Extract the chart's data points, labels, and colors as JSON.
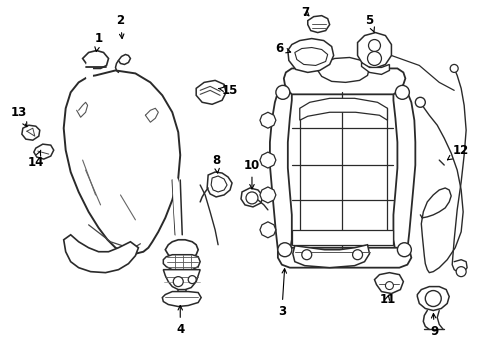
{
  "background_color": "#ffffff",
  "line_color": "#2a2a2a",
  "label_color": "#000000",
  "label_fontsize": 8.5,
  "arrow_color": "#000000",
  "fig_width": 4.89,
  "fig_height": 3.6,
  "dpi": 100
}
